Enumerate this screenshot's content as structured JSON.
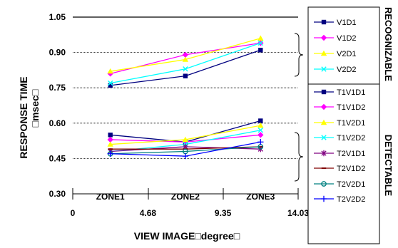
{
  "chart_data": {
    "type": "line",
    "title": "",
    "xlabel": "VIEW IMAGE□degree□",
    "ylabel_line1": "RESPONSE TIME",
    "ylabel_line2": "□msec□",
    "xlim": [
      0,
      14.03
    ],
    "ylim": [
      0.3,
      1.05
    ],
    "x_ticks": [
      "0",
      "4.68",
      "9.35",
      "14.03"
    ],
    "x_tick_values": [
      0,
      4.68,
      9.35,
      14.03
    ],
    "y_ticks": [
      "0.30",
      "0.45",
      "0.60",
      "0.75",
      "0.90",
      "1.05"
    ],
    "y_tick_values": [
      0.3,
      0.45,
      0.6,
      0.75,
      0.9,
      1.05
    ],
    "zones": [
      "ZONE1",
      "ZONE2",
      "ZONE3"
    ],
    "x": [
      2.34,
      7.01,
      11.69
    ],
    "group_labels": [
      "RECOGNIZABLE",
      "DETECTABLE"
    ],
    "series": [
      {
        "name": "V1D1",
        "color": "#000080",
        "marker": "square",
        "values": [
          0.76,
          0.8,
          0.91
        ]
      },
      {
        "name": "V1D2",
        "color": "#ff00ff",
        "marker": "diamond",
        "values": [
          0.81,
          0.89,
          0.94
        ]
      },
      {
        "name": "V2D1",
        "color": "#ffff00",
        "marker": "triangle",
        "values": [
          0.82,
          0.87,
          0.96
        ]
      },
      {
        "name": "V2D2",
        "color": "#00ffff",
        "marker": "x",
        "values": [
          0.77,
          0.83,
          0.94
        ]
      },
      {
        "name": "T1V1D1",
        "color": "#000080",
        "marker": "square",
        "values": [
          0.55,
          0.52,
          0.61
        ]
      },
      {
        "name": "T1V1D2",
        "color": "#ff00ff",
        "marker": "diamond",
        "values": [
          0.53,
          0.52,
          0.55
        ]
      },
      {
        "name": "T1V2D1",
        "color": "#ffff00",
        "marker": "triangle",
        "values": [
          0.51,
          0.53,
          0.59
        ]
      },
      {
        "name": "T1V2D2",
        "color": "#00ffff",
        "marker": "x",
        "values": [
          0.48,
          0.51,
          0.57
        ]
      },
      {
        "name": "T2V1D1",
        "color": "#800080",
        "marker": "star",
        "values": [
          0.48,
          0.5,
          0.49
        ]
      },
      {
        "name": "T2V1D2",
        "color": "#800000",
        "marker": "dash",
        "values": [
          0.49,
          0.49,
          0.5
        ]
      },
      {
        "name": "T2V2D1",
        "color": "#008080",
        "marker": "circle",
        "values": [
          0.47,
          0.48,
          0.5
        ]
      },
      {
        "name": "T2V2D2",
        "color": "#0000ff",
        "marker": "plus",
        "values": [
          0.47,
          0.46,
          0.52
        ]
      }
    ]
  }
}
